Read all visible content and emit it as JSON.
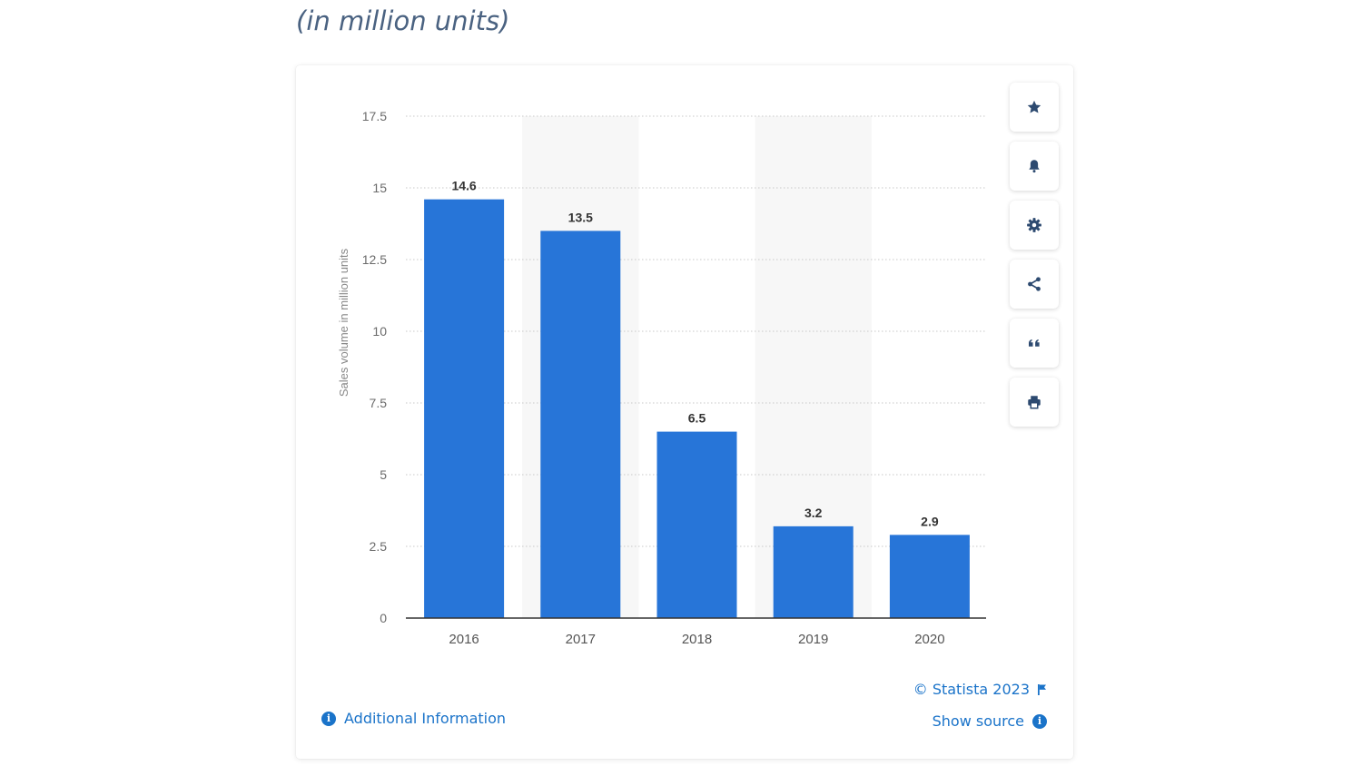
{
  "header": {
    "subtitle": "(in million units)"
  },
  "chart_data": {
    "type": "bar",
    "categories": [
      "2016",
      "2017",
      "2018",
      "2019",
      "2020"
    ],
    "values": [
      14.6,
      13.5,
      6.5,
      3.2,
      2.9
    ],
    "data_labels": [
      "14.6",
      "13.5",
      "6.5",
      "3.2",
      "2.9"
    ],
    "ylabel": "Sales volume in million units",
    "xlabel": "",
    "ylim": [
      0,
      17.5
    ],
    "yticks": [
      0,
      2.5,
      5,
      7.5,
      10,
      12.5,
      15,
      17.5
    ],
    "ytick_labels": [
      "0",
      "2.5",
      "5",
      "7.5",
      "10",
      "12.5",
      "15",
      "17.5"
    ],
    "grid": true,
    "bar_color": "#2775d8"
  },
  "actions": [
    {
      "name": "star-icon"
    },
    {
      "name": "bell-icon"
    },
    {
      "name": "gear-icon"
    },
    {
      "name": "share-icon"
    },
    {
      "name": "quote-icon"
    },
    {
      "name": "print-icon"
    }
  ],
  "footer": {
    "additional_info": "Additional Information",
    "copyright": "© Statista 2023",
    "show_source": "Show source"
  },
  "colors": {
    "accent": "#1a73c9",
    "subtitle": "#4a6281"
  }
}
